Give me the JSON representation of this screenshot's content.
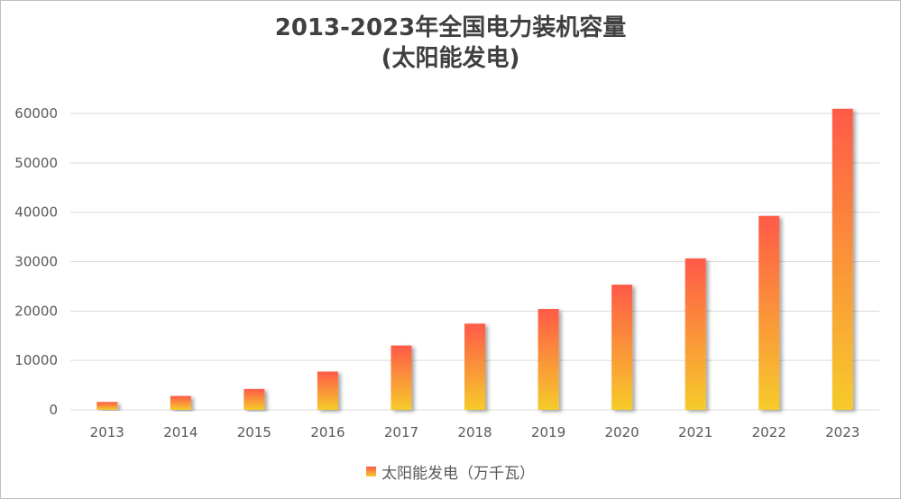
{
  "chart_data": {
    "type": "bar",
    "title_lines": [
      "2013-2023年全国电力装机容量",
      "(太阳能发电)"
    ],
    "categories": [
      "2013",
      "2014",
      "2015",
      "2016",
      "2017",
      "2018",
      "2019",
      "2020",
      "2021",
      "2022",
      "2023"
    ],
    "series": [
      {
        "name": "太阳能发电（万千瓦）",
        "values": [
          1589,
          2805,
          4218,
          7742,
          13025,
          17446,
          20418,
          25343,
          30656,
          39261,
          60949
        ]
      }
    ],
    "ylim": [
      0,
      60000
    ],
    "yticks": [
      "0",
      "10000",
      "20000",
      "30000",
      "40000",
      "50000",
      "60000"
    ],
    "grid": true,
    "legend_position": "bottom",
    "colors": {
      "bar_top": "#ff5a48",
      "bar_bottom": "#f6cb2a",
      "grid": "#d9d9d9",
      "text": "#595959",
      "title": "#404040"
    }
  }
}
